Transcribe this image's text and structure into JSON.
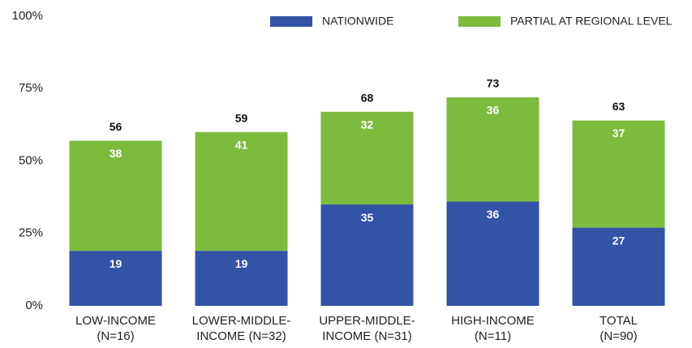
{
  "chart_data": {
    "type": "stacked_bar",
    "categories": [
      [
        "LOW-INCOME",
        "(N=16)"
      ],
      [
        "LOWER-MIDDLE-",
        "INCOME (N=32)"
      ],
      [
        "UPPER-MIDDLE-",
        "INCOME (N=31)"
      ],
      [
        "HIGH-INCOME",
        "(N=11)"
      ],
      [
        "TOTAL",
        "(N=90)"
      ]
    ],
    "series": [
      {
        "name": "NATIONWIDE",
        "color": "#3353a6",
        "values": [
          19,
          19,
          35,
          36,
          27
        ]
      },
      {
        "name": "PARTIAL AT REGIONAL LEVEL",
        "color": "#7dbb3f",
        "values": [
          38,
          41,
          32,
          36,
          37
        ]
      }
    ],
    "totals": [
      56,
      59,
      68,
      73,
      63
    ],
    "ylim": [
      0,
      100
    ],
    "yticks": [
      {
        "value": 0,
        "label": "0%"
      },
      {
        "value": 25,
        "label": "25%"
      },
      {
        "value": 50,
        "label": "50%"
      },
      {
        "value": 75,
        "label": "75%"
      },
      {
        "value": 100,
        "label": "100%"
      }
    ],
    "grid": false,
    "legend": "top"
  }
}
